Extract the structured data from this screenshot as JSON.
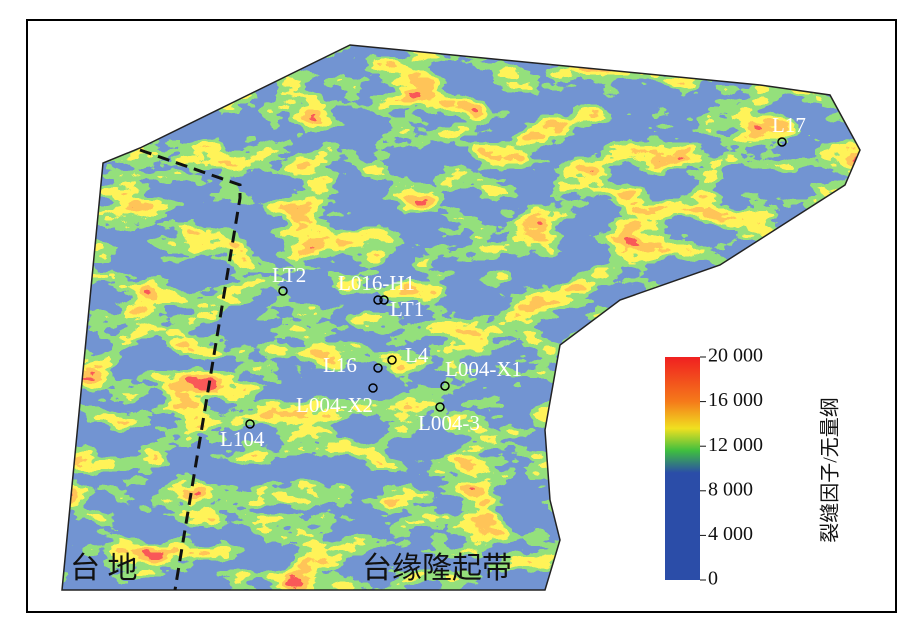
{
  "map": {
    "wells": [
      "LT2",
      "L016-H1",
      "LT1",
      "L16",
      "L4",
      "L004-X1",
      "L004-X2",
      "L004-3",
      "L104",
      "L17"
    ],
    "regions": [
      "台 地",
      "台缘隆起带"
    ],
    "colorbar": {
      "title": "裂缝因子/无量纲",
      "min": 0,
      "max": 20000,
      "ticks": [
        {
          "value": 20000,
          "label": "20 000"
        },
        {
          "value": 16000,
          "label": "16 000"
        },
        {
          "value": 12000,
          "label": "12 000"
        },
        {
          "value": 8000,
          "label": "8 000"
        },
        {
          "value": 4000,
          "label": "4 000"
        },
        0
      ]
    }
  }
}
